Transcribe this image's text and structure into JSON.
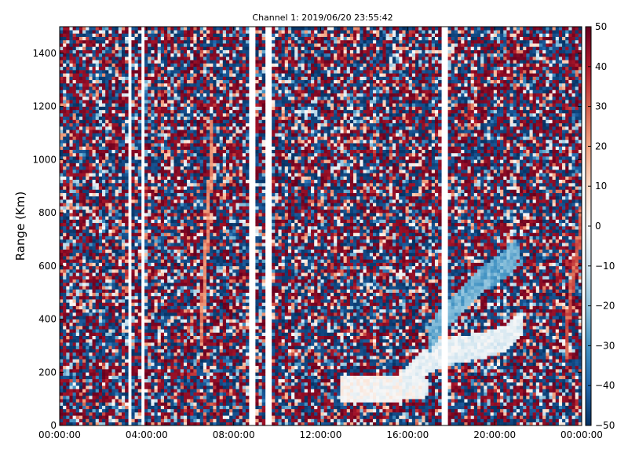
{
  "chart_data": {
    "type": "heatmap",
    "title": "Channel 1: 2019/06/20 23:55:42",
    "xlabel": "",
    "ylabel": "Range (Km)",
    "x_ticks": [
      "00:00:00",
      "04:00:00",
      "08:00:00",
      "12:00:00",
      "16:00:00",
      "20:00:00",
      "00:00:00"
    ],
    "x_range_hours": [
      0,
      24
    ],
    "y_ticks": [
      "0",
      "200",
      "400",
      "600",
      "800",
      "1000",
      "1200",
      "1400"
    ],
    "y_tick_values": [
      0,
      200,
      400,
      600,
      800,
      1000,
      1200,
      1400
    ],
    "ylim": [
      0,
      1500
    ],
    "colorbar": {
      "colormap": "RdBu_r",
      "min": -50,
      "max": 50,
      "ticks": [
        "50",
        "40",
        "30",
        "20",
        "10",
        "0",
        "−10",
        "−20",
        "−30",
        "−40",
        "−50"
      ],
      "tick_values": [
        50,
        40,
        30,
        20,
        10,
        0,
        -10,
        -20,
        -30,
        -40,
        -50
      ]
    },
    "grid": false,
    "legend": "none",
    "data_gaps_hours": [
      [
        3.1,
        3.3
      ],
      [
        3.8,
        3.95
      ],
      [
        8.65,
        8.95
      ],
      [
        9.4,
        9.75
      ],
      [
        17.6,
        17.8
      ]
    ],
    "noise_fraction_extreme": 0.7,
    "features": [
      {
        "kind": "negative-trace",
        "points_hours_km": [
          [
            17.0,
            320
          ],
          [
            17.4,
            380
          ],
          [
            18.0,
            430
          ],
          [
            18.8,
            500
          ],
          [
            19.6,
            560
          ],
          [
            20.4,
            600
          ],
          [
            21.0,
            650
          ]
        ],
        "value": -25
      },
      {
        "kind": "near-zero-trace",
        "points_hours_km": [
          [
            15.8,
            160
          ],
          [
            16.5,
            220
          ],
          [
            17.5,
            270
          ],
          [
            18.5,
            290
          ],
          [
            19.5,
            300
          ],
          [
            20.5,
            330
          ],
          [
            21.2,
            380
          ]
        ],
        "value": -5
      },
      {
        "kind": "near-zero-band",
        "points_hours_km": [
          [
            13.0,
            140
          ],
          [
            15.0,
            140
          ],
          [
            16.8,
            150
          ]
        ],
        "value": 0
      },
      {
        "kind": "positive-trace",
        "points_hours_km": [
          [
            23.3,
            300
          ],
          [
            23.4,
            420
          ],
          [
            23.6,
            560
          ],
          [
            23.8,
            650
          ],
          [
            24.0,
            800
          ]
        ],
        "value": 30
      },
      {
        "kind": "positive-trace",
        "points_hours_km": [
          [
            6.5,
            350
          ],
          [
            6.7,
            600
          ],
          [
            6.9,
            900
          ],
          [
            7.0,
            1100
          ]
        ],
        "value": 25
      }
    ]
  }
}
